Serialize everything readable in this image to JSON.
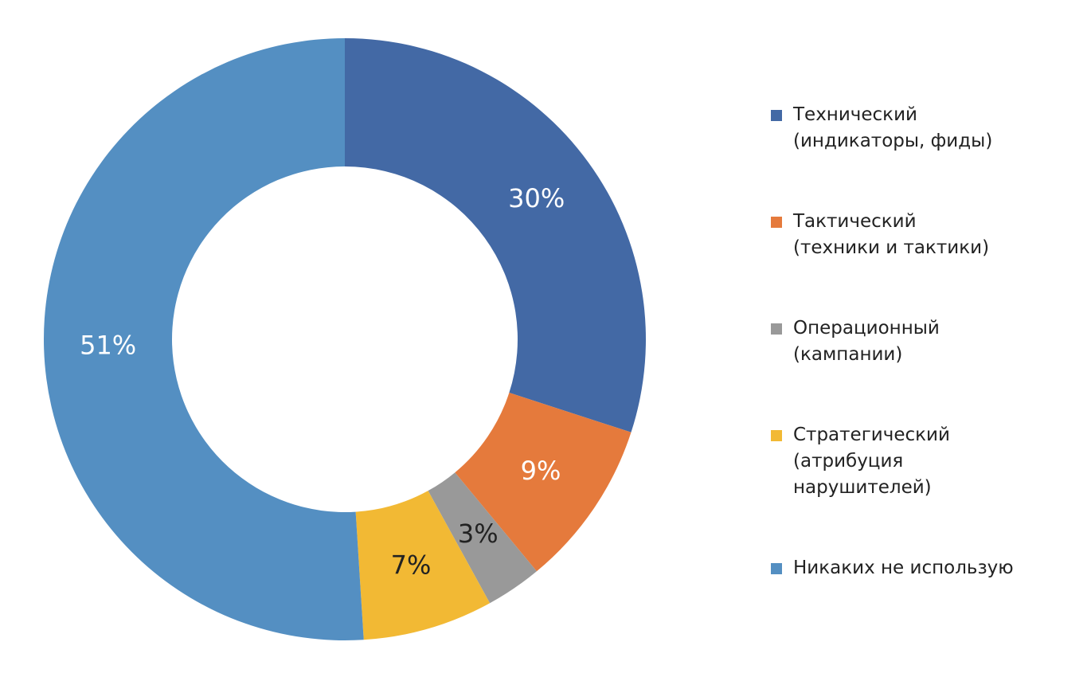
{
  "chart_data": {
    "type": "donut",
    "categories": [
      "Технический\n(индикаторы, фиды)",
      "Тактический\n(техники и тактики)",
      "Операционный\n(кампании)",
      "Стратегический\n(атрибуция\nнарушителей)",
      "Никаких не использую"
    ],
    "values": [
      30,
      9,
      3,
      7,
      51
    ],
    "value_labels": [
      "30%",
      "9%",
      "3%",
      "7%",
      "51%"
    ],
    "colors": [
      "#4369a5",
      "#e57a3c",
      "#999999",
      "#f2b934",
      "#548fc2"
    ],
    "label_colors": [
      "#ffffff",
      "#ffffff",
      "#222222",
      "#222222",
      "#ffffff"
    ],
    "legend": "right"
  }
}
